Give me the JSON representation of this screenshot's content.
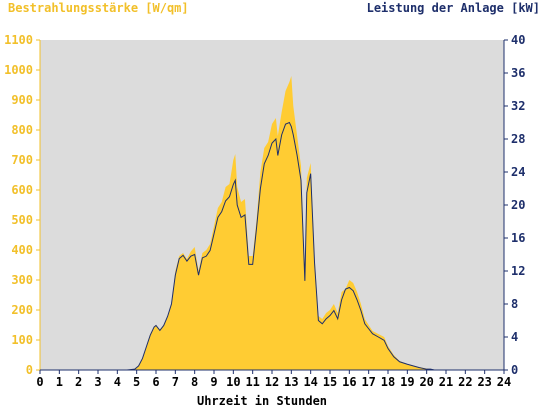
{
  "chart_data": {
    "type": "area",
    "title_left": "Bestrahlungsstärke [W/qm]",
    "title_right": "Leistung der Anlage [kW]",
    "xlabel": "Uhrzeit in Stunden",
    "xlim": [
      0,
      24
    ],
    "x_ticks": [
      "0",
      "1",
      "2",
      "3",
      "4",
      "5",
      "6",
      "7",
      "8",
      "9",
      "10",
      "11",
      "12",
      "13",
      "14",
      "15",
      "16",
      "17",
      "18",
      "19",
      "20",
      "21",
      "22",
      "23",
      "24"
    ],
    "ylim_left": [
      0,
      1100
    ],
    "y_ticks_left": [
      "0",
      "100",
      "200",
      "300",
      "400",
      "500",
      "600",
      "700",
      "800",
      "900",
      "1000",
      "1100"
    ],
    "ylim_right": [
      0,
      40
    ],
    "y_ticks_right": [
      "0",
      "4",
      "8",
      "12",
      "16",
      "20",
      "24",
      "28",
      "32",
      "36",
      "40"
    ],
    "colors": {
      "irradiance_fill": "#ffcc33",
      "power_line": "#1e2f6b",
      "plot_bg": "#dcdcdc",
      "left_axis": "#f2c02a",
      "right_axis": "#1e2f6b"
    },
    "series": [
      {
        "name": "Bestrahlungsstärke [W/qm]",
        "axis": "left",
        "style": "area",
        "x": [
          0,
          4.5,
          4.9,
          5.1,
          5.3,
          5.5,
          5.7,
          5.9,
          6.0,
          6.2,
          6.4,
          6.6,
          6.8,
          7.0,
          7.2,
          7.4,
          7.6,
          7.8,
          8.0,
          8.2,
          8.4,
          8.6,
          8.8,
          9.0,
          9.2,
          9.4,
          9.6,
          9.8,
          10.0,
          10.1,
          10.2,
          10.4,
          10.6,
          10.8,
          11.0,
          11.2,
          11.4,
          11.6,
          11.8,
          12.0,
          12.2,
          12.3,
          12.5,
          12.7,
          12.9,
          13.0,
          13.1,
          13.3,
          13.5,
          13.7,
          13.8,
          14.0,
          14.2,
          14.4,
          14.6,
          14.8,
          15.0,
          15.2,
          15.4,
          15.6,
          15.8,
          16.0,
          16.2,
          16.4,
          16.6,
          16.8,
          17.0,
          17.2,
          17.5,
          17.8,
          18.0,
          18.3,
          18.6,
          19.0,
          19.3,
          19.6,
          20.0,
          20.2,
          20.4,
          24
        ],
        "values": [
          0,
          0,
          3,
          15,
          40,
          80,
          120,
          145,
          150,
          135,
          150,
          180,
          220,
          330,
          380,
          390,
          370,
          395,
          410,
          330,
          390,
          400,
          420,
          480,
          540,
          560,
          610,
          620,
          700,
          720,
          610,
          560,
          570,
          380,
          380,
          500,
          660,
          740,
          760,
          820,
          840,
          780,
          860,
          930,
          960,
          980,
          880,
          780,
          680,
          310,
          640,
          690,
          380,
          180,
          170,
          190,
          200,
          220,
          190,
          260,
          270,
          300,
          290,
          260,
          220,
          170,
          150,
          130,
          120,
          110,
          80,
          50,
          30,
          20,
          15,
          10,
          5,
          3,
          0,
          0
        ]
      },
      {
        "name": "Leistung der Anlage [kW]",
        "axis": "right",
        "style": "line",
        "x": [
          0,
          4.5,
          4.9,
          5.1,
          5.3,
          5.5,
          5.7,
          5.9,
          6.0,
          6.2,
          6.4,
          6.6,
          6.8,
          7.0,
          7.2,
          7.4,
          7.6,
          7.8,
          8.0,
          8.2,
          8.4,
          8.6,
          8.8,
          9.0,
          9.2,
          9.4,
          9.6,
          9.8,
          10.0,
          10.1,
          10.2,
          10.4,
          10.6,
          10.8,
          11.0,
          11.2,
          11.4,
          11.6,
          11.8,
          12.0,
          12.2,
          12.3,
          12.5,
          12.7,
          12.9,
          13.0,
          13.1,
          13.3,
          13.5,
          13.7,
          13.8,
          14.0,
          14.2,
          14.4,
          14.6,
          14.8,
          15.0,
          15.2,
          15.4,
          15.6,
          15.8,
          16.0,
          16.2,
          16.4,
          16.6,
          16.8,
          17.0,
          17.2,
          17.5,
          17.8,
          18.0,
          18.3,
          18.6,
          19.0,
          19.3,
          19.6,
          20.0,
          20.2,
          20.4,
          24
        ],
        "values": [
          0,
          0,
          0.1,
          0.5,
          1.4,
          2.8,
          4.2,
          5.2,
          5.4,
          4.8,
          5.4,
          6.5,
          8.0,
          11.5,
          13.5,
          13.9,
          13.2,
          13.8,
          14.0,
          11.5,
          13.6,
          13.8,
          14.5,
          16.5,
          18.5,
          19.2,
          20.5,
          21.0,
          22.5,
          23.0,
          20.0,
          18.5,
          18.8,
          12.8,
          12.8,
          17.2,
          22.0,
          25.0,
          26.0,
          27.5,
          28.0,
          26.0,
          28.5,
          29.8,
          30.0,
          29.5,
          28.5,
          26.0,
          23.0,
          10.8,
          21.5,
          23.8,
          13.0,
          6.0,
          5.6,
          6.2,
          6.6,
          7.2,
          6.2,
          8.5,
          9.8,
          10.0,
          9.6,
          8.5,
          7.2,
          5.6,
          5.0,
          4.4,
          4.0,
          3.6,
          2.6,
          1.6,
          1.0,
          0.7,
          0.5,
          0.3,
          0.1,
          0.1,
          0,
          0
        ]
      }
    ]
  }
}
